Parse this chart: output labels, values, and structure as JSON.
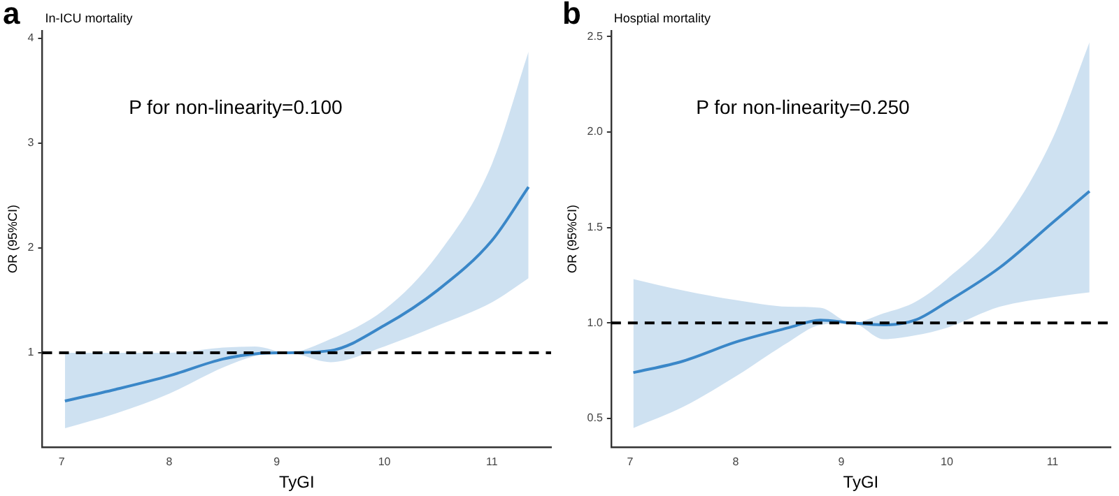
{
  "chart_data": [
    {
      "type": "line",
      "title": "In-ICU mortality",
      "xlabel": "TyGI",
      "ylabel": "OR (95%CI)",
      "annotations": [
        "a",
        "P for non-linearity=0.100"
      ],
      "series": [
        {
          "color": "#3a87c8",
          "x": [
            7.03,
            7.5,
            8,
            8.5,
            8.8,
            9.1,
            9.5,
            10,
            10.5,
            11,
            11.34
          ],
          "values": [
            0.54,
            0.65,
            0.78,
            0.94,
            0.99,
            1.0,
            1.02,
            1.26,
            1.6,
            2.07,
            2.58
          ],
          "lower": [
            0.28,
            0.42,
            0.61,
            0.86,
            0.97,
            1.0,
            0.91,
            1.06,
            1.26,
            1.48,
            1.71
          ],
          "upper": [
            1.0,
            1.0,
            1.0,
            1.05,
            1.06,
            1.0,
            1.13,
            1.41,
            1.94,
            2.8,
            3.87
          ]
        }
      ],
      "xlim": [
        6.82,
        11.55
      ],
      "ylim": [
        0.1,
        4.07
      ],
      "xticks": [
        7,
        8,
        9,
        10,
        11
      ],
      "yticks": [
        1,
        2,
        3,
        4
      ],
      "ref_lines": [
        {
          "axis": "y",
          "value": 1,
          "color": "#000000",
          "line_style": "dashed"
        }
      ],
      "grid": false
    },
    {
      "type": "line",
      "title": "Hosptial mortality",
      "xlabel": "TyGI",
      "ylabel": "OR (95%CI)",
      "annotations": [
        "b",
        "P for non-linearity=0.250"
      ],
      "series": [
        {
          "color": "#3a87c8",
          "x": [
            7.03,
            7.5,
            8,
            8.5,
            8.8,
            9.1,
            9.4,
            9.7,
            10,
            10.5,
            11,
            11.35
          ],
          "values": [
            0.74,
            0.8,
            0.9,
            0.975,
            1.015,
            1.0,
            0.99,
            1.015,
            1.11,
            1.29,
            1.525,
            1.69
          ],
          "lower": [
            0.45,
            0.56,
            0.72,
            0.9,
            0.99,
            1.0,
            0.915,
            0.935,
            0.975,
            1.085,
            1.135,
            1.16
          ],
          "upper": [
            1.23,
            1.17,
            1.12,
            1.085,
            1.08,
            1.0,
            1.05,
            1.11,
            1.23,
            1.5,
            1.965,
            2.47
          ]
        }
      ],
      "xlim": [
        6.82,
        11.55
      ],
      "ylim": [
        0.35,
        2.53
      ],
      "xticks": [
        7,
        8,
        9,
        10,
        11
      ],
      "yticks": [
        {
          "value": 0.5,
          "label": "0.5"
        },
        {
          "value": 1,
          "label": "1.0"
        },
        {
          "value": 1.5,
          "label": "1.5"
        },
        {
          "value": 2,
          "label": "2.0"
        },
        {
          "value": 2.5,
          "label": "2.5"
        }
      ],
      "ref_lines": [
        {
          "axis": "y",
          "value": 1,
          "color": "#000000",
          "line_style": "dashed"
        }
      ],
      "grid": false
    }
  ]
}
